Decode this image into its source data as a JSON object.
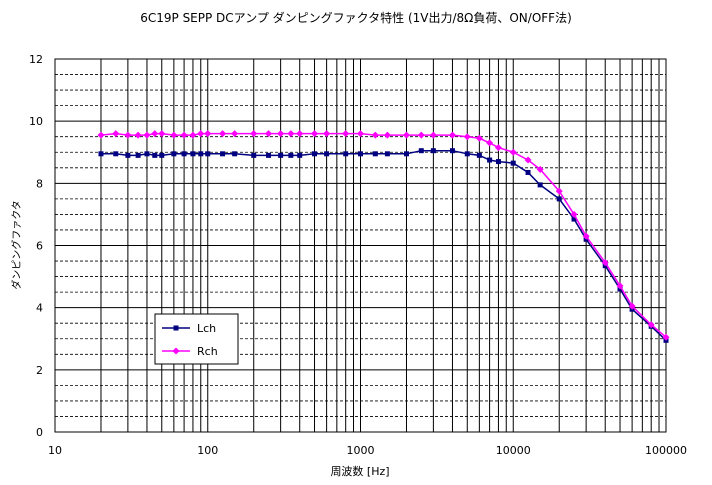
{
  "chart_data": {
    "type": "line",
    "title": "6C19P SEPP DCアンプ ダンピングファクタ特性 (1V出力/8Ω負荷、ON/OFF法)",
    "xlabel": "周波数 [Hz]",
    "ylabel": "ダンピングファクタ",
    "x_scale": "log",
    "xlim": [
      10,
      100000
    ],
    "ylim": [
      0,
      12
    ],
    "grid": true,
    "legend_position": "lower-left",
    "x_ticks": [
      "10",
      "100",
      "1000",
      "10000",
      "100000"
    ],
    "y_ticks": [
      "0",
      "2",
      "4",
      "6",
      "8",
      "10",
      "12"
    ],
    "x": [
      20,
      25,
      30,
      35,
      40,
      45,
      50,
      60,
      70,
      80,
      90,
      100,
      125,
      150,
      200,
      250,
      300,
      350,
      400,
      500,
      600,
      800,
      1000,
      1250,
      1500,
      2000,
      2500,
      3000,
      4000,
      5000,
      6000,
      7000,
      8000,
      10000,
      12500,
      15000,
      20000,
      25000,
      30000,
      40000,
      50000,
      60000,
      80000,
      100000
    ],
    "series": [
      {
        "name": "Lch",
        "color": "#000080",
        "marker": "square",
        "values": [
          8.95,
          8.95,
          8.9,
          8.9,
          8.95,
          8.9,
          8.9,
          8.95,
          8.95,
          8.95,
          8.95,
          8.95,
          8.95,
          8.95,
          8.9,
          8.9,
          8.9,
          8.9,
          8.9,
          8.95,
          8.95,
          8.95,
          8.95,
          8.95,
          8.95,
          8.95,
          9.05,
          9.05,
          9.05,
          8.95,
          8.9,
          8.75,
          8.7,
          8.65,
          8.35,
          7.95,
          7.5,
          6.85,
          6.2,
          5.35,
          4.6,
          3.95,
          3.4,
          2.95
        ]
      },
      {
        "name": "Rch",
        "color": "#ff00ff",
        "marker": "diamond",
        "values": [
          9.55,
          9.6,
          9.55,
          9.55,
          9.55,
          9.6,
          9.6,
          9.55,
          9.55,
          9.55,
          9.6,
          9.6,
          9.6,
          9.6,
          9.6,
          9.6,
          9.6,
          9.6,
          9.6,
          9.6,
          9.6,
          9.6,
          9.6,
          9.55,
          9.55,
          9.55,
          9.55,
          9.55,
          9.55,
          9.5,
          9.45,
          9.3,
          9.15,
          9.0,
          8.75,
          8.45,
          7.75,
          7.0,
          6.3,
          5.45,
          4.7,
          4.05,
          3.45,
          3.05
        ]
      }
    ]
  }
}
